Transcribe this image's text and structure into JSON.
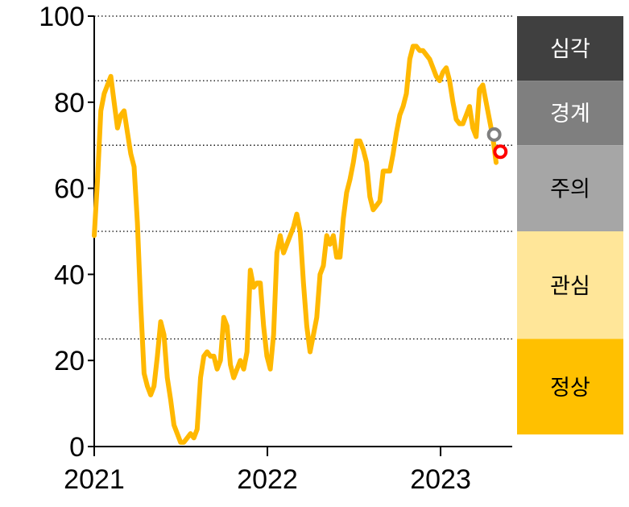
{
  "chart_data": {
    "type": "line",
    "title": "",
    "xlabel": "",
    "ylabel": "",
    "ylim": [
      0,
      100
    ],
    "xlim": [
      "2021-01",
      "2023-06"
    ],
    "yticks": [
      "0",
      "20",
      "40",
      "60",
      "80",
      "100"
    ],
    "xticks": [
      {
        "x": "2021-01",
        "label": "2021"
      },
      {
        "x": "2022-01",
        "label": "2022"
      },
      {
        "x": "2023-01",
        "label": "2023"
      }
    ],
    "grid": "dotted horizontal lines at band thresholds",
    "thresholds": [
      25,
      50,
      70,
      85
    ],
    "line_color": "#FFB800",
    "bands": [
      {
        "label": "심각",
        "from": 85,
        "to": 100,
        "color": "#404040",
        "text_color": "#ffffff"
      },
      {
        "label": "경계",
        "from": 70,
        "to": 85,
        "color": "#7f7f7f",
        "text_color": "#ffffff"
      },
      {
        "label": "주의",
        "from": 50,
        "to": 70,
        "color": "#a6a6a6",
        "text_color": "#000000"
      },
      {
        "label": "관심",
        "from": 25,
        "to": 50,
        "color": "#ffe699",
        "text_color": "#000000"
      },
      {
        "label": "정상",
        "from": 0,
        "to": 25,
        "color": "#ffc000",
        "text_color": "#000000"
      }
    ],
    "series": [
      {
        "values": [
          [
            "2021-01-01",
            49
          ],
          [
            "2021-01-08",
            62
          ],
          [
            "2021-01-15",
            78
          ],
          [
            "2021-01-22",
            82
          ],
          [
            "2021-01-29",
            84
          ],
          [
            "2021-02-05",
            86
          ],
          [
            "2021-02-12",
            80
          ],
          [
            "2021-02-19",
            74
          ],
          [
            "2021-02-26",
            77
          ],
          [
            "2021-03-05",
            78
          ],
          [
            "2021-03-12",
            73
          ],
          [
            "2021-03-19",
            68
          ],
          [
            "2021-03-26",
            65
          ],
          [
            "2021-04-02",
            52
          ],
          [
            "2021-04-09",
            33
          ],
          [
            "2021-04-16",
            17
          ],
          [
            "2021-04-23",
            14
          ],
          [
            "2021-04-30",
            12
          ],
          [
            "2021-05-07",
            14
          ],
          [
            "2021-05-14",
            21
          ],
          [
            "2021-05-21",
            29
          ],
          [
            "2021-05-28",
            26
          ],
          [
            "2021-06-04",
            16
          ],
          [
            "2021-06-11",
            11
          ],
          [
            "2021-06-18",
            5
          ],
          [
            "2021-06-25",
            3
          ],
          [
            "2021-07-02",
            1
          ],
          [
            "2021-07-09",
            1
          ],
          [
            "2021-07-16",
            2
          ],
          [
            "2021-07-23",
            3
          ],
          [
            "2021-07-30",
            2
          ],
          [
            "2021-08-06",
            4
          ],
          [
            "2021-08-13",
            16
          ],
          [
            "2021-08-20",
            21
          ],
          [
            "2021-08-27",
            22
          ],
          [
            "2021-09-03",
            21
          ],
          [
            "2021-09-10",
            21
          ],
          [
            "2021-09-17",
            18
          ],
          [
            "2021-09-24",
            20
          ],
          [
            "2021-10-01",
            30
          ],
          [
            "2021-10-08",
            28
          ],
          [
            "2021-10-15",
            19
          ],
          [
            "2021-10-22",
            16
          ],
          [
            "2021-10-29",
            18
          ],
          [
            "2021-11-05",
            20
          ],
          [
            "2021-11-12",
            18
          ],
          [
            "2021-11-19",
            22
          ],
          [
            "2021-11-26",
            41
          ],
          [
            "2021-12-03",
            37
          ],
          [
            "2021-12-10",
            38
          ],
          [
            "2021-12-17",
            38
          ],
          [
            "2021-12-24",
            28
          ],
          [
            "2021-12-31",
            21
          ],
          [
            "2022-01-07",
            18
          ],
          [
            "2022-01-14",
            26
          ],
          [
            "2022-01-21",
            45
          ],
          [
            "2022-01-28",
            49
          ],
          [
            "2022-02-04",
            45
          ],
          [
            "2022-02-11",
            47
          ],
          [
            "2022-02-18",
            49
          ],
          [
            "2022-02-25",
            51
          ],
          [
            "2022-03-04",
            54
          ],
          [
            "2022-03-11",
            50
          ],
          [
            "2022-03-18",
            38
          ],
          [
            "2022-03-25",
            28
          ],
          [
            "2022-04-01",
            22
          ],
          [
            "2022-04-08",
            26
          ],
          [
            "2022-04-15",
            30
          ],
          [
            "2022-04-22",
            40
          ],
          [
            "2022-04-29",
            42
          ],
          [
            "2022-05-06",
            49
          ],
          [
            "2022-05-13",
            47
          ],
          [
            "2022-05-20",
            49
          ],
          [
            "2022-05-27",
            44
          ],
          [
            "2022-06-03",
            44
          ],
          [
            "2022-06-10",
            53
          ],
          [
            "2022-06-17",
            59
          ],
          [
            "2022-06-24",
            62
          ],
          [
            "2022-07-01",
            66
          ],
          [
            "2022-07-08",
            71
          ],
          [
            "2022-07-15",
            71
          ],
          [
            "2022-07-22",
            69
          ],
          [
            "2022-07-29",
            66
          ],
          [
            "2022-08-05",
            58
          ],
          [
            "2022-08-12",
            55
          ],
          [
            "2022-08-19",
            56
          ],
          [
            "2022-08-26",
            57
          ],
          [
            "2022-09-02",
            64
          ],
          [
            "2022-09-09",
            64
          ],
          [
            "2022-09-16",
            64
          ],
          [
            "2022-09-23",
            68
          ],
          [
            "2022-09-30",
            73
          ],
          [
            "2022-10-07",
            77
          ],
          [
            "2022-10-14",
            79
          ],
          [
            "2022-10-21",
            82
          ],
          [
            "2022-10-28",
            90
          ],
          [
            "2022-11-04",
            93
          ],
          [
            "2022-11-11",
            93
          ],
          [
            "2022-11-18",
            92
          ],
          [
            "2022-11-25",
            92
          ],
          [
            "2022-12-02",
            91
          ],
          [
            "2022-12-09",
            90
          ],
          [
            "2022-12-16",
            88
          ],
          [
            "2022-12-23",
            86
          ],
          [
            "2022-12-30",
            85
          ],
          [
            "2023-01-06",
            87
          ],
          [
            "2023-01-13",
            88
          ],
          [
            "2023-01-20",
            85
          ],
          [
            "2023-01-27",
            80
          ],
          [
            "2023-02-03",
            76
          ],
          [
            "2023-02-10",
            75
          ],
          [
            "2023-02-17",
            75
          ],
          [
            "2023-02-24",
            77
          ],
          [
            "2023-03-03",
            79
          ],
          [
            "2023-03-10",
            74
          ],
          [
            "2023-03-17",
            72
          ],
          [
            "2023-03-24",
            83
          ],
          [
            "2023-03-31",
            84
          ],
          [
            "2023-04-07",
            80
          ],
          [
            "2023-04-14",
            76
          ],
          [
            "2023-04-21",
            72
          ],
          [
            "2023-04-28",
            66
          ]
        ]
      }
    ],
    "markers": [
      {
        "x": "2023-04-24",
        "y": 72.5,
        "color": "#7f7f7f"
      },
      {
        "x": "2023-05-07",
        "y": 68.5,
        "color": "#ff0000"
      }
    ]
  }
}
